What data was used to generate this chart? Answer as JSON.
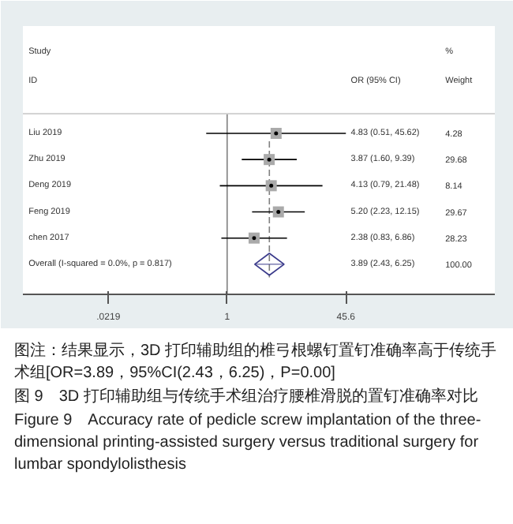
{
  "chart_data": {
    "type": "scatter",
    "orientation": "horizontal",
    "categories": [
      "Liu 2019",
      "Zhu 2019",
      "Deng 2019",
      "Feng 2019",
      "chen 2017",
      "Overall  (I-squared = 0.0%, p = 0.817)"
    ],
    "series": [
      {
        "color": "#aaaaaa",
        "marker": "square",
        "values": [
          4.83,
          3.87,
          4.13,
          5.2,
          2.38,
          null
        ],
        "errors": [
          [
            0.51,
            45.62
          ],
          [
            1.6,
            9.39
          ],
          [
            0.79,
            21.48
          ],
          [
            2.23,
            12.15
          ],
          [
            0.83,
            6.86
          ],
          null
        ]
      },
      {
        "color": "#3c3c8c",
        "marker": "diamond",
        "values": [
          null,
          null,
          null,
          null,
          null,
          3.89
        ],
        "errors": [
          null,
          null,
          null,
          null,
          null,
          [
            2.43,
            6.25
          ]
        ]
      }
    ],
    "log": "x",
    "xlim": [
      0.0014,
      5500
    ],
    "xticks": [
      {
        "value": 0.0219,
        "label": ".0219"
      },
      1,
      45.6
    ],
    "ref_lines": [
      {
        "axis": "x",
        "value": 1,
        "color": "#808080",
        "line_style": "solid"
      },
      {
        "axis": "x",
        "value": 3.89,
        "color": "#808080",
        "line_style": "dashed"
      }
    ],
    "grid": false,
    "annotations": [
      "Study",
      "ID",
      "OR (95% CI)",
      "%",
      "Weight",
      "4.83 (0.51, 45.62)",
      "3.87 (1.60, 9.39)",
      "4.13 (0.79, 21.48)",
      "5.20 (2.23, 12.15)",
      "2.38 (0.83, 6.86)",
      "3.89 (2.43, 6.25)",
      "4.28",
      "29.68",
      "8.14",
      "29.67",
      "28.23",
      "100.00",
      "图注：结果显示，3D 打印辅助组的椎弓根螺钉置钉准确率高于传统手术组[OR=3.89，95%CI(2.43，6.25)，P=0.00]",
      "图 9　3D 打印辅助组与传统手术组治疗腰椎滑脱的置钉准确率对比",
      "Figure 9　Accuracy rate of pedicle screw implantation of the three-dimensional printing-assisted surgery versus traditional surgery for lumbar spondylolisthesis"
    ]
  }
}
